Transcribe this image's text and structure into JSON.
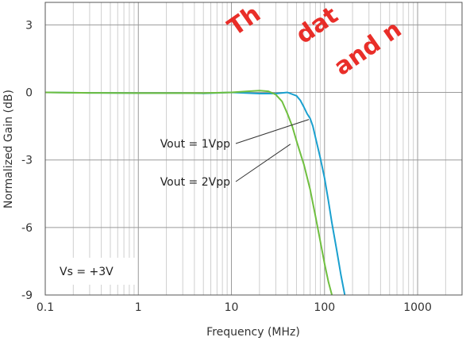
{
  "chart_data": {
    "type": "line",
    "title": "",
    "xlabel": "Frequency (MHz)",
    "ylabel": "Normalized Gain (dB)",
    "xscale": "log",
    "xlim": [
      0.1,
      3000
    ],
    "ylim": [
      -9,
      4
    ],
    "x_ticks": [
      0.1,
      1,
      10,
      100,
      1000
    ],
    "x_tick_labels": [
      "0.1",
      "1",
      "10",
      "100",
      "1000"
    ],
    "y_ticks": [
      3,
      0,
      -3,
      -6,
      -9
    ],
    "y_tick_labels": [
      "3",
      "0",
      "-3",
      "-6",
      "-9"
    ],
    "grid": true,
    "grid_minor_x": true,
    "series": [
      {
        "name": "Vout = 1Vpp",
        "color": "#1aa0cf",
        "x": [
          0.1,
          0.3,
          1,
          3,
          5,
          10,
          20,
          30,
          40,
          50,
          55,
          60,
          65,
          70,
          75,
          80,
          90,
          100,
          110,
          120,
          135,
          150,
          165
        ],
        "y": [
          0,
          -0.02,
          -0.03,
          -0.03,
          -0.04,
          0.0,
          -0.05,
          -0.05,
          0.0,
          -0.15,
          -0.35,
          -0.65,
          -0.95,
          -1.15,
          -1.5,
          -2.0,
          -2.9,
          -3.8,
          -4.8,
          -5.8,
          -7.0,
          -8.1,
          -9.0
        ]
      },
      {
        "name": "Vout = 2Vpp",
        "color": "#6fbf3f",
        "x": [
          0.1,
          0.3,
          1,
          3,
          5,
          10,
          15,
          20,
          25,
          30,
          35,
          40,
          45,
          50,
          55,
          60,
          70,
          80,
          90,
          100,
          110,
          120
        ],
        "y": [
          0,
          -0.02,
          -0.03,
          -0.03,
          -0.03,
          0.0,
          0.05,
          0.08,
          0.05,
          -0.1,
          -0.4,
          -0.95,
          -1.5,
          -2.15,
          -2.7,
          -3.2,
          -4.3,
          -5.5,
          -6.6,
          -7.6,
          -8.4,
          -9.0
        ]
      }
    ],
    "annotations": [
      {
        "text": "Vout = 1Vpp",
        "series": 0,
        "point": [
          68,
          -1.2
        ]
      },
      {
        "text": "Vout = 2Vpp",
        "series": 1,
        "point": [
          43,
          -2.3
        ]
      }
    ],
    "condition_label": "Vs = +3V"
  },
  "watermark": {
    "lines": [
      "Th",
      "dat",
      "and n"
    ],
    "color": "#e8231e"
  }
}
